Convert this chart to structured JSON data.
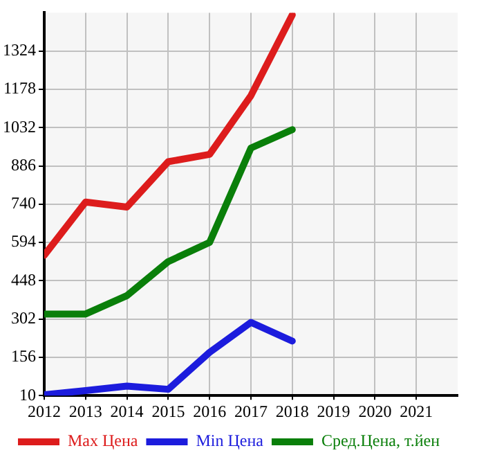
{
  "chart_data": {
    "type": "line",
    "x": [
      2012,
      2013,
      2014,
      2015,
      2016,
      2017,
      2018
    ],
    "series": [
      {
        "name": "Max Цена",
        "color": "#dd1c1c",
        "values": [
          545,
          748,
          729,
          902,
          930,
          1154,
          1462
        ]
      },
      {
        "name": "Min Цена",
        "color": "#1c1cdd",
        "values": [
          13,
          29,
          46,
          34,
          175,
          289,
          218
        ]
      },
      {
        "name": "Сред.Цена, т.йен",
        "color": "#0a7f0a",
        "values": [
          321,
          321,
          391,
          521,
          594,
          954,
          1024
        ]
      }
    ],
    "xlim": [
      2012,
      2022
    ],
    "xticks": [
      2012,
      2013,
      2014,
      2015,
      2016,
      2017,
      2018,
      2019,
      2020,
      2021
    ],
    "ylim": [
      10,
      1470
    ],
    "yticks": [
      10,
      156,
      302,
      448,
      594,
      740,
      886,
      1032,
      1178,
      1324
    ],
    "grid": true,
    "legend": "bottom",
    "marker": "none",
    "line_style": "solid"
  }
}
